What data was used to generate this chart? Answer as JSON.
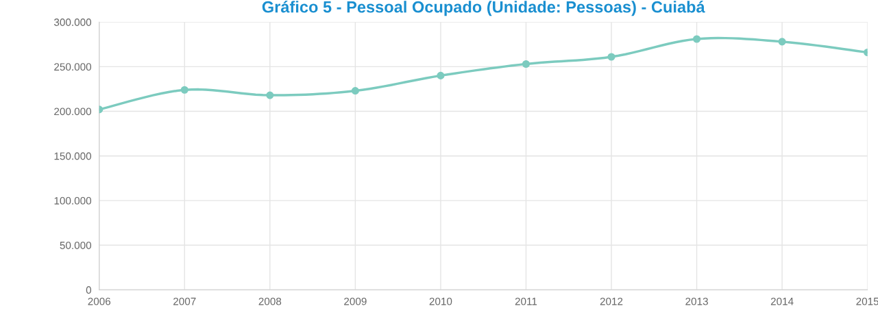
{
  "chart_data": {
    "type": "line",
    "title": "Gráfico 5 - Pessoal Ocupado (Unidade: Pessoas) - Cuiabá",
    "x": [
      2006,
      2007,
      2008,
      2009,
      2010,
      2011,
      2012,
      2013,
      2014,
      2015
    ],
    "series": [
      {
        "color": "#7ccbbf",
        "values": [
          202000,
          224000,
          218000,
          223000,
          240000,
          253000,
          261000,
          281000,
          278000,
          266000
        ]
      }
    ],
    "xlim": [
      2006,
      2015
    ],
    "xticks": [
      2006,
      2007,
      2008,
      2009,
      2010,
      2011,
      2012,
      2013,
      2014,
      2015
    ],
    "ylim": [
      0,
      300000
    ],
    "yticks": [
      {
        "value": 0,
        "label": "0"
      },
      {
        "value": 50000,
        "label": "50.000"
      },
      {
        "value": 100000,
        "label": "100.000"
      },
      {
        "value": 150000,
        "label": "150.000"
      },
      {
        "value": 200000,
        "label": "200.000"
      },
      {
        "value": 250000,
        "label": "250.000"
      },
      {
        "value": 300000,
        "label": "300.000"
      }
    ],
    "grid": true,
    "marker": "circle",
    "line_style": "solid",
    "legend": false
  }
}
